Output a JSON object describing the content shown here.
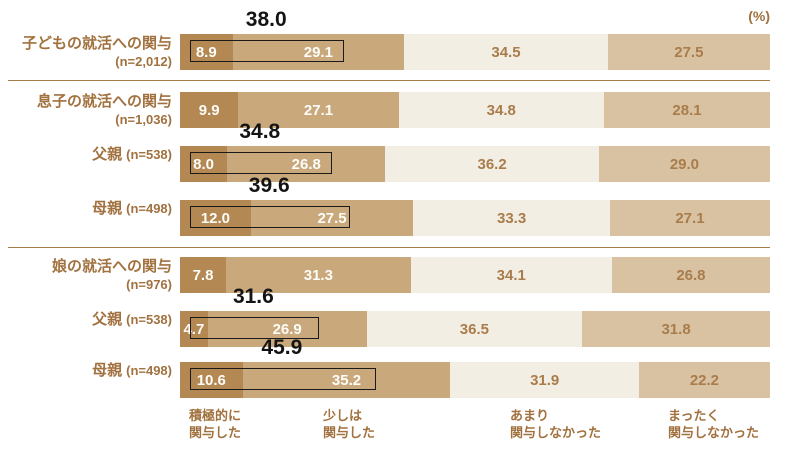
{
  "unit_label": "(%)",
  "colors": {
    "segment_colors": [
      "#b38853",
      "#c9a87c",
      "#f3eee4",
      "#d8c2a2"
    ],
    "label_brown": "#a1713f",
    "value_on_dark": "#fdfcf8",
    "value_on_light": "#a97c4b",
    "total_black": "#141414",
    "separator": "#a67c4e",
    "box_border": "#1a1a1a"
  },
  "legend": [
    {
      "name": "積極的に関与した",
      "line1": "積極的に",
      "line2": "関与した"
    },
    {
      "name": "少しは関与した",
      "line1": "少しは",
      "line2": "関与した"
    },
    {
      "name": "あまり関与しなかった",
      "line1": "あまり",
      "line2": "関与しなかった"
    },
    {
      "name": "まったく関与しなかった",
      "line1": "まったく",
      "line2": "関与しなかった"
    }
  ],
  "chart_data": {
    "type": "bar",
    "orientation": "horizontal",
    "stacked": true,
    "unit": "%",
    "x_range": [
      0,
      100
    ],
    "series": [
      "積極的に関与した",
      "少しは関与した",
      "あまり関与しなかった",
      "まったく関与しなかった"
    ],
    "rows": [
      {
        "label": "子どもの就活への関与",
        "n_label": "(n=2,012)",
        "two_line": true,
        "values": [
          8.9,
          29.1,
          34.5,
          27.5
        ],
        "highlight_total": "38.0"
      },
      {
        "label": "息子の就活への関与",
        "n_label": "(n=1,036)",
        "two_line": true,
        "values": [
          9.9,
          27.1,
          34.8,
          28.1
        ],
        "highlight_total": null
      },
      {
        "label": "父親",
        "n_label": "(n=538)",
        "two_line": false,
        "values": [
          8.0,
          26.8,
          36.2,
          29.0
        ],
        "highlight_total": "34.8"
      },
      {
        "label": "母親",
        "n_label": "(n=498)",
        "two_line": false,
        "values": [
          12.0,
          27.5,
          33.3,
          27.1
        ],
        "highlight_total": "39.6"
      },
      {
        "label": "娘の就活への関与",
        "n_label": "(n=976)",
        "two_line": true,
        "values": [
          7.8,
          31.3,
          34.1,
          26.8
        ],
        "highlight_total": null
      },
      {
        "label": "父親",
        "n_label": "(n=538)",
        "two_line": false,
        "values": [
          4.7,
          26.9,
          36.5,
          31.8
        ],
        "highlight_total": "31.6"
      },
      {
        "label": "母親",
        "n_label": "(n=498)",
        "two_line": false,
        "values": [
          10.6,
          35.2,
          31.9,
          22.2
        ],
        "highlight_total": "45.9"
      }
    ],
    "separators_after_rows": [
      0,
      3
    ]
  }
}
